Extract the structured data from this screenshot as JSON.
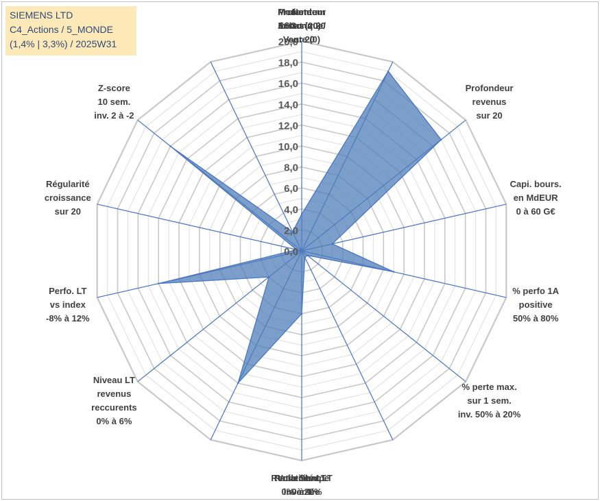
{
  "info": {
    "line1": "SIEMENS LTD",
    "line2": "C4_Actions / 5_MONDE",
    "line3": "(1,4% | 3,3%) / 2025W31"
  },
  "colors": {
    "fill": "#4f7eb8",
    "stroke": "#4472c4",
    "grid": "#c8c8c8",
    "info_bg": "#fde9b7",
    "info_text": "#2e4a7a"
  },
  "chart_data": {
    "type": "radar",
    "rmin": 0,
    "rmax": 20,
    "tick_step": 2,
    "grid_rings": 20,
    "ticks": [
      "0,0",
      "2,0",
      "4,0",
      "6,0",
      "8,0",
      "10,0",
      "12,0",
      "14,0",
      "16,0",
      "18,0",
      "20,0"
    ],
    "axes": [
      [
        "Note",
        "ESG sur 20"
      ],
      [
        "Profondeur",
        "historique",
        "sur 20"
      ],
      [
        "Profondeur",
        "revenus",
        "sur 20"
      ],
      [
        "Capi. bours.",
        "en MdEUR",
        "0 à 60 G€"
      ],
      [
        "% perfo 1A",
        "positive",
        "50% à 80%"
      ],
      [
        "% perte max.",
        "sur 1 sem.",
        "inv. 50% à 20%"
      ],
      [
        "Volatilité LT",
        "inversée",
        "40% à 0%"
      ],
      [
        "Ratio Sharpe",
        "0 à 1"
      ],
      [
        "Rendement LT",
        "0% à 20%"
      ],
      [
        "Niveau LT",
        "revenus",
        "reccurents",
        "0% à 6%"
      ],
      [
        "Perfo. LT",
        "vs index",
        "-8% à 12%"
      ],
      [
        "Régularité",
        "croissance",
        "sur 20"
      ],
      [
        "Z-score",
        "10 sem.",
        "inv. 2 à -2"
      ],
      [
        "Momentum",
        "Achat (20) /",
        "Vente (0)"
      ]
    ],
    "values": [
      3.5,
      19.0,
      17.0,
      3.0,
      9.0,
      0.7,
      0.7,
      6.0,
      14.0,
      4.0,
      14.0,
      0.5,
      16.0,
      2.0
    ]
  }
}
